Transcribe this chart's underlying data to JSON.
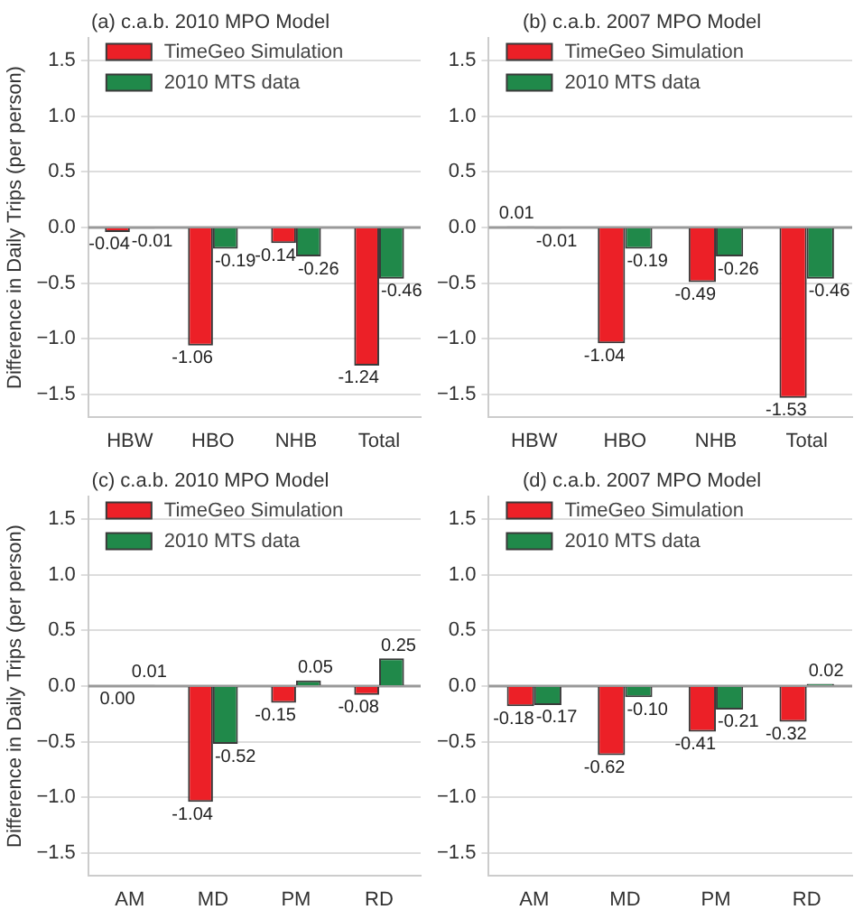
{
  "chart_data": [
    {
      "type": "bar",
      "title": "(a) c.a.b. 2010 MPO Model",
      "ylabel": "Difference in Daily Trips (per person)",
      "categories": [
        "HBW",
        "HBO",
        "NHB",
        "Total"
      ],
      "series": [
        {
          "name": "TimeGeo Simulation",
          "color": "#ec2027",
          "values": [
            -0.04,
            -1.06,
            -0.14,
            -1.24
          ],
          "value_labels": [
            "-0.04",
            "-1.06",
            "-0.14",
            "-1.24"
          ]
        },
        {
          "name": "2010 MTS data",
          "color": "#20894a",
          "values": [
            -0.01,
            -0.19,
            -0.26,
            -0.46
          ],
          "value_labels": [
            "-0.01",
            "-0.19",
            "-0.26",
            "-0.46"
          ]
        }
      ],
      "ylim": [
        -1.7,
        1.7
      ],
      "yticks": [
        {
          "value": -1.5,
          "label": "−1.5"
        },
        {
          "value": -1.0,
          "label": "−1.0"
        },
        {
          "value": -0.5,
          "label": "−0.5"
        },
        {
          "value": 0,
          "label": "0.0"
        },
        {
          "value": 0.5,
          "label": "0.5"
        },
        {
          "value": 1.0,
          "label": "1.0"
        },
        {
          "value": 1.5,
          "label": "1.5"
        }
      ],
      "grid": "y",
      "legend": "top left"
    },
    {
      "type": "bar",
      "title": "(b) c.a.b. 2007 MPO Model",
      "categories": [
        "HBW",
        "HBO",
        "NHB",
        "Total"
      ],
      "series": [
        {
          "name": "TimeGeo Simulation",
          "color": "#ec2027",
          "values": [
            0.01,
            -1.04,
            -0.49,
            -1.53
          ],
          "value_labels": [
            "0.01",
            "-1.04",
            "-0.49",
            "-1.53"
          ]
        },
        {
          "name": "2010 MTS data",
          "color": "#20894a",
          "values": [
            -0.01,
            -0.19,
            -0.26,
            -0.46
          ],
          "value_labels": [
            "-0.01",
            "-0.19",
            "-0.26",
            "-0.46"
          ]
        }
      ],
      "ylim": [
        -1.7,
        1.7
      ],
      "yticks": [
        {
          "value": -1.5,
          "label": "−1.5"
        },
        {
          "value": -1.0,
          "label": "−1.0"
        },
        {
          "value": -0.5,
          "label": "−0.5"
        },
        {
          "value": 0,
          "label": "0.0"
        },
        {
          "value": 0.5,
          "label": "0.5"
        },
        {
          "value": 1.0,
          "label": "1.0"
        },
        {
          "value": 1.5,
          "label": "1.5"
        }
      ],
      "grid": "y",
      "legend": "top left"
    },
    {
      "type": "bar",
      "title": "(c) c.a.b. 2010 MPO Model",
      "ylabel": "Difference in Daily Trips (per person)",
      "categories": [
        "AM",
        "MD",
        "PM",
        "RD"
      ],
      "series": [
        {
          "name": "TimeGeo Simulation",
          "color": "#ec2027",
          "values": [
            0.0,
            -1.04,
            -0.15,
            -0.08
          ],
          "value_labels": [
            "0.00",
            "-1.04",
            "-0.15",
            "-0.08"
          ]
        },
        {
          "name": "2010 MTS data",
          "color": "#20894a",
          "values": [
            0.01,
            -0.52,
            0.05,
            0.25
          ],
          "value_labels": [
            "0.01",
            "-0.52",
            "0.05",
            "0.25"
          ]
        }
      ],
      "ylim": [
        -1.7,
        1.7
      ],
      "yticks": [
        {
          "value": -1.5,
          "label": "−1.5"
        },
        {
          "value": -1.0,
          "label": "−1.0"
        },
        {
          "value": -0.5,
          "label": "−0.5"
        },
        {
          "value": 0,
          "label": "0.0"
        },
        {
          "value": 0.5,
          "label": "0.5"
        },
        {
          "value": 1.0,
          "label": "1.0"
        },
        {
          "value": 1.5,
          "label": "1.5"
        }
      ],
      "grid": "y",
      "legend": "top left"
    },
    {
      "type": "bar",
      "title": "(d) c.a.b. 2007 MPO Model",
      "categories": [
        "AM",
        "MD",
        "PM",
        "RD"
      ],
      "series": [
        {
          "name": "TimeGeo Simulation",
          "color": "#ec2027",
          "values": [
            -0.18,
            -0.62,
            -0.41,
            -0.32
          ],
          "value_labels": [
            "-0.18",
            "-0.62",
            "-0.41",
            "-0.32"
          ]
        },
        {
          "name": "2010 MTS data",
          "color": "#20894a",
          "values": [
            -0.17,
            -0.1,
            -0.21,
            0.02
          ],
          "value_labels": [
            "-0.17",
            "-0.10",
            "-0.21",
            "0.02"
          ]
        }
      ],
      "ylim": [
        -1.7,
        1.7
      ],
      "yticks": [
        {
          "value": -1.5,
          "label": "−1.5"
        },
        {
          "value": -1.0,
          "label": "−1.0"
        },
        {
          "value": -0.5,
          "label": "−0.5"
        },
        {
          "value": 0,
          "label": "0.0"
        },
        {
          "value": 0.5,
          "label": "0.5"
        },
        {
          "value": 1.0,
          "label": "1.0"
        },
        {
          "value": 1.5,
          "label": "1.5"
        }
      ],
      "grid": "y",
      "legend": "top left"
    }
  ]
}
